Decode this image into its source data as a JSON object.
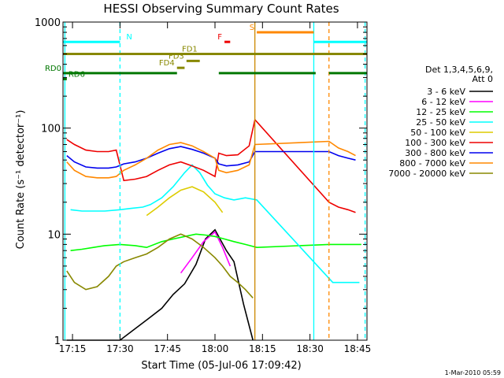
{
  "chart_data": {
    "type": "line",
    "title": "HESSI Observing Summary Count Rates",
    "xlabel": "Start Time (05-Jul-06 17:09:42)",
    "ylabel": "Count Rate (s⁻¹ detector⁻¹)",
    "yscale": "log",
    "ylim": [
      1,
      1000
    ],
    "xlim_minutes": [
      17.2,
      18.8
    ],
    "x_ticks": [
      "17:15",
      "17:30",
      "17:45",
      "18:00",
      "18:15",
      "18:30",
      "18:45"
    ],
    "x_tick_values": [
      17.25,
      17.5,
      17.75,
      18.0,
      18.25,
      18.5,
      18.75
    ],
    "y_ticks": [
      "1",
      "10",
      "100",
      "1000"
    ],
    "y_tick_values": [
      1,
      10,
      100,
      1000
    ],
    "legend": {
      "placement": "right",
      "header": [
        "Det 1,3,4,5,6,9,",
        "Att 0"
      ],
      "entries": [
        {
          "label": "3 - 6 keV",
          "color": "#000000"
        },
        {
          "label": "6 - 12 keV",
          "color": "#ff00ff"
        },
        {
          "label": "12 - 25 keV",
          "color": "#00ff00"
        },
        {
          "label": "25 - 50 keV",
          "color": "#00ffff"
        },
        {
          "label": "50 - 100 keV",
          "color": "#ddcc00"
        },
        {
          "label": "100 - 300 keV",
          "color": "#ee0000"
        },
        {
          "label": "300 - 800 keV",
          "color": "#0000ee"
        },
        {
          "label": "800 - 7000 keV",
          "color": "#ff8800"
        },
        {
          "label": "7000 - 20000 keV",
          "color": "#888800"
        }
      ]
    },
    "flag_bars": [
      {
        "label": "N",
        "color": "#00ffff",
        "y": 650,
        "segments": [
          [
            17.2,
            17.5
          ],
          [
            18.52,
            18.8
          ]
        ]
      },
      {
        "label": "S",
        "color": "#ff8800",
        "y": 800,
        "segments": [
          [
            18.22,
            18.52
          ]
        ]
      },
      {
        "label": "F",
        "color": "#ee0000",
        "y": 650,
        "segments": [
          [
            18.05,
            18.08
          ]
        ]
      },
      {
        "label": "FD1",
        "color": "#888800",
        "y": 500,
        "segments": [
          [
            17.2,
            18.8
          ]
        ]
      },
      {
        "label": "FD3",
        "color": "#888800",
        "y": 430,
        "segments": [
          [
            17.85,
            17.92
          ]
        ]
      },
      {
        "label": "FD4",
        "color": "#888800",
        "y": 370,
        "segments": [
          [
            17.8,
            17.84
          ]
        ]
      },
      {
        "label": "RD0",
        "color": "#007700",
        "y": 330,
        "segments": [
          [
            17.2,
            17.8
          ],
          [
            18.02,
            18.53
          ],
          [
            18.6,
            18.8
          ]
        ]
      },
      {
        "label": "RD6",
        "color": "#007700",
        "y": 290,
        "segments": [
          [
            17.2,
            17.22
          ]
        ]
      }
    ],
    "vertical_markers": [
      {
        "x": 17.21,
        "color": "#00ffff",
        "style": "solid"
      },
      {
        "x": 17.5,
        "color": "#00ffff",
        "style": "dashed"
      },
      {
        "x": 18.21,
        "color": "#cc8800",
        "style": "solid"
      },
      {
        "x": 18.52,
        "color": "#00ffff",
        "style": "solid"
      },
      {
        "x": 18.6,
        "color": "#ff8800",
        "style": "dashed"
      },
      {
        "x": 18.79,
        "color": "#00ffff",
        "style": "dashed"
      }
    ],
    "series": [
      {
        "name": "3 - 6 keV",
        "color": "#000000",
        "x": [
          17.22,
          17.35,
          17.5,
          17.65,
          17.72,
          17.78,
          17.84,
          17.9,
          17.95,
          18.0,
          18.06,
          18.1,
          18.15,
          18.2
        ],
        "y": [
          1,
          1,
          1,
          1.6,
          2.0,
          2.7,
          3.4,
          5.2,
          9.0,
          11.0,
          7.0,
          5.5,
          2.2,
          1.0
        ]
      },
      {
        "name": "6 - 12 keV",
        "color": "#ff00ff",
        "x": [
          17.82,
          17.88,
          17.94,
          18.0,
          18.04,
          18.08
        ],
        "y": [
          4.3,
          6.0,
          8.5,
          10.5,
          7.5,
          5.0
        ]
      },
      {
        "name": "12 - 25 keV",
        "color": "#00ff00",
        "x": [
          17.24,
          17.3,
          17.36,
          17.42,
          17.5,
          17.58,
          17.64,
          17.72,
          17.78,
          17.84,
          17.9,
          17.95,
          18.0,
          18.05,
          18.1,
          18.16,
          18.22,
          18.6,
          18.65,
          18.7,
          18.77
        ],
        "y": [
          7.0,
          7.2,
          7.5,
          7.8,
          8.0,
          7.8,
          7.5,
          8.5,
          9.0,
          9.5,
          10.0,
          9.8,
          9.5,
          9.0,
          8.5,
          8.0,
          7.5,
          8.0,
          8.0,
          8.0,
          8.0
        ]
      },
      {
        "name": "25 - 50 keV",
        "color": "#00ffff",
        "x": [
          17.24,
          17.3,
          17.36,
          17.42,
          17.5,
          17.56,
          17.62,
          17.66,
          17.72,
          17.78,
          17.84,
          17.88,
          17.92,
          17.96,
          18.0,
          18.05,
          18.1,
          18.16,
          18.22,
          18.62,
          18.68,
          18.72,
          18.76
        ],
        "y": [
          17.0,
          16.5,
          16.5,
          16.5,
          17.0,
          17.5,
          18.0,
          19.0,
          22.0,
          28.0,
          38.0,
          45.0,
          38.0,
          29.0,
          24.0,
          22.0,
          21.0,
          22.0,
          21.0,
          3.5,
          3.5,
          3.5,
          3.5
        ]
      },
      {
        "name": "50 - 100 keV",
        "color": "#ddcc00",
        "x": [
          17.64,
          17.7,
          17.76,
          17.82,
          17.88,
          17.94,
          18.0,
          18.04
        ],
        "y": [
          15.0,
          18.0,
          22.0,
          26.0,
          28.0,
          25.0,
          20.0,
          16.0
        ]
      },
      {
        "name": "100 - 300 keV",
        "color": "#ee0000",
        "x": [
          17.22,
          17.26,
          17.32,
          17.38,
          17.44,
          17.48,
          17.52,
          17.58,
          17.64,
          17.7,
          17.76,
          17.82,
          17.88,
          17.94,
          18.0,
          18.02,
          18.06,
          18.12,
          18.18,
          18.21,
          18.6,
          18.65,
          18.7,
          18.74
        ],
        "y": [
          78.0,
          70.0,
          62.0,
          60.0,
          60.0,
          62.0,
          32.0,
          33.0,
          35.0,
          40.0,
          45.0,
          48.0,
          44.0,
          40.0,
          35.0,
          58.0,
          55.0,
          56.0,
          68.0,
          120.0,
          20.0,
          18.0,
          17.0,
          16.0
        ]
      },
      {
        "name": "300 - 800 keV",
        "color": "#0000ee",
        "x": [
          17.22,
          17.26,
          17.32,
          17.38,
          17.44,
          17.48,
          17.52,
          17.58,
          17.64,
          17.7,
          17.76,
          17.82,
          17.88,
          17.94,
          18.0,
          18.02,
          18.06,
          18.12,
          18.18,
          18.21,
          18.6,
          18.65,
          18.7,
          18.74
        ],
        "y": [
          55.0,
          48.0,
          43.0,
          42.0,
          42.0,
          43.0,
          46.0,
          48.0,
          52.0,
          58.0,
          64.0,
          67.0,
          63.0,
          58.0,
          52.0,
          46.0,
          44.0,
          45.0,
          48.0,
          60.0,
          60.0,
          55.0,
          52.0,
          50.0
        ]
      },
      {
        "name": "800 - 7000 keV",
        "color": "#ff8800",
        "x": [
          17.22,
          17.26,
          17.32,
          17.38,
          17.44,
          17.48,
          17.52,
          17.58,
          17.64,
          17.7,
          17.76,
          17.82,
          17.88,
          17.94,
          18.0,
          18.02,
          18.06,
          18.12,
          18.18,
          18.21,
          18.6,
          18.65,
          18.7,
          18.74
        ],
        "y": [
          48.0,
          40.0,
          35.0,
          34.0,
          34.0,
          35.0,
          40.0,
          45.0,
          52.0,
          62.0,
          70.0,
          73.0,
          68.0,
          60.0,
          52.0,
          40.0,
          38.0,
          40.0,
          45.0,
          70.0,
          75.0,
          65.0,
          60.0,
          55.0
        ]
      },
      {
        "name": "7000 - 20000 keV",
        "color": "#888800",
        "x": [
          17.22,
          17.26,
          17.32,
          17.38,
          17.44,
          17.48,
          17.52,
          17.58,
          17.64,
          17.7,
          17.76,
          17.82,
          17.88,
          17.94,
          18.0,
          18.04,
          18.08,
          18.12,
          18.16,
          18.2
        ],
        "y": [
          4.5,
          3.5,
          3.0,
          3.2,
          4.0,
          5.0,
          5.5,
          6.0,
          6.5,
          7.5,
          9.0,
          10.0,
          9.0,
          7.5,
          6.0,
          5.0,
          4.0,
          3.5,
          3.0,
          2.5
        ]
      }
    ],
    "footer_date": "1-Mar-2010 05:59"
  }
}
